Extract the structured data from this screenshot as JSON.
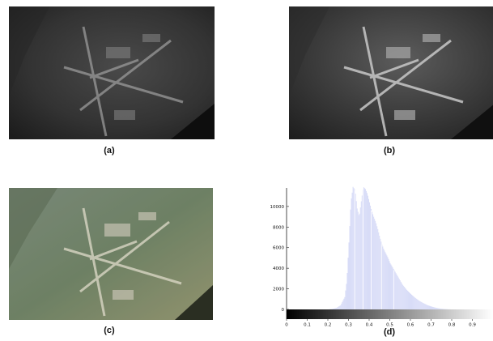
{
  "captions": {
    "a": "(a)",
    "b": "(b)",
    "c": "(c)",
    "d": "(d)"
  },
  "colors": {
    "histogram_fill": "#d8dcf7",
    "histogram_edge": "#c6cbf1",
    "photo_dark": "#2a2a2a",
    "photo_color_tint": "#7d8a68"
  },
  "chart_data": {
    "type": "bar",
    "xlim": [
      0,
      1
    ],
    "ylim": [
      0,
      11800
    ],
    "x_ticks": [
      "0",
      "0.1",
      "0.2",
      "0.3",
      "0.4",
      "0.5",
      "0.6",
      "0.7",
      "0.8",
      "0.9"
    ],
    "y_ticks": [
      "0",
      "2000",
      "4000",
      "6000",
      "8000",
      "10000"
    ],
    "colorbar": "grayscale 0 to 1",
    "x": [
      0.2,
      0.22,
      0.24,
      0.26,
      0.28,
      0.29,
      0.3,
      0.31,
      0.32,
      0.33,
      0.34,
      0.35,
      0.36,
      0.37,
      0.38,
      0.39,
      0.4,
      0.41,
      0.42,
      0.43,
      0.44,
      0.45,
      0.46,
      0.47,
      0.48,
      0.49,
      0.5,
      0.52,
      0.54,
      0.56,
      0.58,
      0.6,
      0.62,
      0.64,
      0.66,
      0.68,
      0.7,
      0.72,
      0.74,
      0.76,
      0.78,
      0.8
    ],
    "values": [
      0,
      50,
      150,
      400,
      1200,
      2800,
      6500,
      10500,
      11900,
      11600,
      9800,
      9000,
      10500,
      11900,
      11700,
      11200,
      10400,
      9600,
      9000,
      8500,
      7800,
      7000,
      6300,
      5800,
      5400,
      5000,
      4500,
      3800,
      3100,
      2400,
      1900,
      1500,
      1150,
      850,
      620,
      420,
      280,
      170,
      90,
      45,
      15,
      0
    ]
  }
}
